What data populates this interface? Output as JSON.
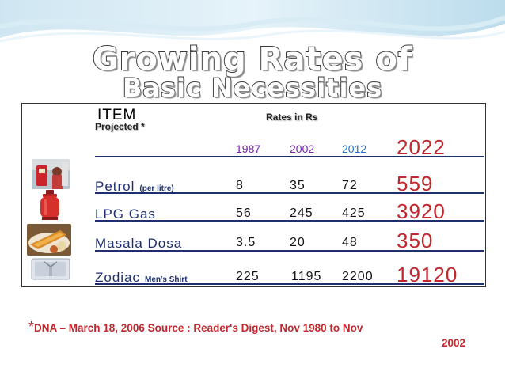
{
  "title": {
    "line1": "Growing Rates of",
    "line2": "Basic Necessities"
  },
  "table": {
    "item_header": "ITEM",
    "projected_label": "Projected *",
    "rates_header": "Rates in Rs",
    "years": [
      "1987",
      "2002",
      "2012",
      "2022"
    ],
    "rows": [
      {
        "name": "Petrol",
        "sub": "(per litre)",
        "values": [
          "8",
          "35",
          "72",
          "559"
        ],
        "icon": "fuel-pump-icon"
      },
      {
        "name": "LPG Gas",
        "sub": "",
        "values": [
          "56",
          "245",
          "425",
          "3920"
        ],
        "icon": "gas-cylinder-icon"
      },
      {
        "name": "Masala Dosa",
        "sub": "",
        "values": [
          "3.5",
          "20",
          "48",
          "350"
        ],
        "icon": "dosa-plate-icon"
      },
      {
        "name": "Zodiac",
        "sub": "Men's Shirt",
        "values": [
          "225",
          "1195",
          "2200",
          "19120"
        ],
        "icon": "shirt-box-icon"
      }
    ]
  },
  "footnote": {
    "star": "*",
    "line1": "DNA – March 18, 2006  Source : Reader's Digest, Nov 1980 to Nov",
    "line2": "2002"
  },
  "colors": {
    "year_1987_2002": "#7a1fb0",
    "year_2012": "#1e6fd6",
    "projected_2022": "#c0282e",
    "item_names": "#1e2e6e",
    "footnote": "#c0282e"
  }
}
